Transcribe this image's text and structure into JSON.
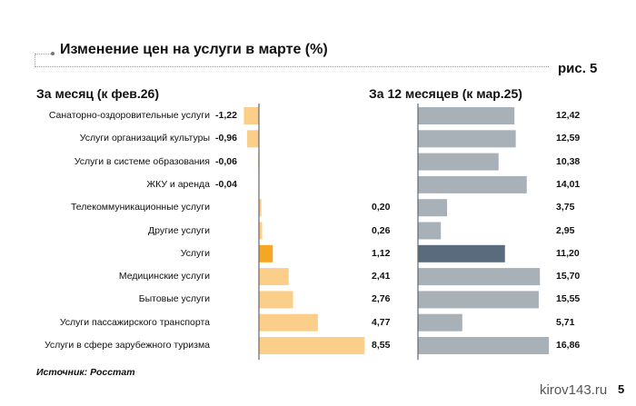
{
  "chart_data": [
    {
      "type": "bar",
      "orientation": "horizontal",
      "title": "Изменение цен на услуги в марте (%)",
      "figure_label": "рис. 5",
      "subtitle": "За месяц (к фев.26)",
      "categories": [
        "Санаторно-оздоровительные услуги",
        "Услуги организаций культуры",
        "Услуги в системе образования",
        "ЖКУ и аренда",
        "Телекоммуникационные услуги",
        "Другие услуги",
        "Услуги",
        "Медицинские услуги",
        "Бытовые услуги",
        "Услуги пассажирского транспорта",
        "Услуги в сфере зарубежного туризма"
      ],
      "values": [
        -1.22,
        -0.96,
        -0.06,
        -0.04,
        0.2,
        0.26,
        1.12,
        2.41,
        2.76,
        4.77,
        8.55
      ],
      "labels": [
        "-1,22",
        "-0,96",
        "-0,06",
        "-0,04",
        "0,20",
        "0,26",
        "1,12",
        "2,41",
        "2,76",
        "4,77",
        "8,55"
      ],
      "highlight_index": 6,
      "colors": {
        "bar": "#fbcf8a",
        "highlight": "#f5a623"
      }
    },
    {
      "type": "bar",
      "orientation": "horizontal",
      "subtitle": "За 12 месяцев (к мар.25)",
      "categories": [
        "Санаторно-оздоровительные услуги",
        "Услуги организаций культуры",
        "Услуги в системе образования",
        "ЖКУ и аренда",
        "Телекоммуникационные услуги",
        "Другие услуги",
        "Услуги",
        "Медицинские услуги",
        "Бытовые услуги",
        "Услуги пассажирского транспорта",
        "Услуги в сфере зарубежного туризма"
      ],
      "values": [
        12.42,
        12.59,
        10.38,
        14.01,
        3.75,
        2.95,
        11.2,
        15.7,
        15.55,
        5.71,
        16.86
      ],
      "labels": [
        "12,42",
        "12,59",
        "10,38",
        "14,01",
        "3,75",
        "2,95",
        "11,20",
        "15,70",
        "15,55",
        "5,71",
        "16,86"
      ],
      "highlight_index": 6,
      "colors": {
        "bar": "#a9b1b8",
        "highlight": "#5a6b7d"
      }
    }
  ],
  "source": "Источник: Росстат",
  "watermark": "kirov143.ru",
  "page_number": "5"
}
